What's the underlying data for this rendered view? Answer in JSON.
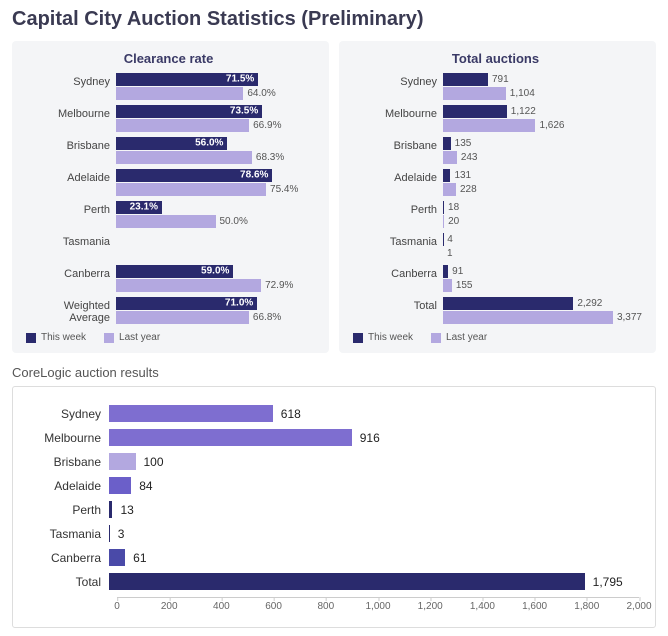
{
  "title": "Capital City Auction Statistics (Preliminary)",
  "colors": {
    "this_week": "#2a2a6d",
    "last_year": "#b3a8e0",
    "results_bar_light": "#7e6ed0",
    "results_bar_dark": "#2a2a6d",
    "card_bg": "#f4f5f7"
  },
  "clearance": {
    "title": "Clearance rate",
    "max": 100,
    "rows": [
      {
        "label": "Sydney",
        "this_week": 71.5,
        "last_year": 64.0
      },
      {
        "label": "Melbourne",
        "this_week": 73.5,
        "last_year": 66.9
      },
      {
        "label": "Brisbane",
        "this_week": 56.0,
        "last_year": 68.3
      },
      {
        "label": "Adelaide",
        "this_week": 78.6,
        "last_year": 75.4
      },
      {
        "label": "Perth",
        "this_week": 23.1,
        "last_year": 50.0
      },
      {
        "label": "Tasmania",
        "this_week": null,
        "last_year": null
      },
      {
        "label": "Canberra",
        "this_week": 59.0,
        "last_year": 72.9
      },
      {
        "label": "Weighted Average",
        "this_week": 71.0,
        "last_year": 66.8
      }
    ],
    "legend_this": "This week",
    "legend_last": "Last year",
    "value_suffix": "%"
  },
  "auctions": {
    "title": "Total auctions",
    "max": 3500,
    "rows": [
      {
        "label": "Sydney",
        "this_week": 791,
        "last_year": 1104,
        "last_fmt": "1,104"
      },
      {
        "label": "Melbourne",
        "this_week": 1122,
        "last_year": 1626,
        "this_fmt": "1,122",
        "last_fmt": "1,626"
      },
      {
        "label": "Brisbane",
        "this_week": 135,
        "last_year": 243
      },
      {
        "label": "Adelaide",
        "this_week": 131,
        "last_year": 228
      },
      {
        "label": "Perth",
        "this_week": 18,
        "last_year": 20
      },
      {
        "label": "Tasmania",
        "this_week": 4,
        "last_year": 1
      },
      {
        "label": "Canberra",
        "this_week": 91,
        "last_year": 155
      },
      {
        "label": "Total",
        "this_week": 2292,
        "last_year": 3377,
        "this_fmt": "2,292",
        "last_fmt": "3,377"
      }
    ],
    "legend_this": "This week",
    "legend_last": "Last year"
  },
  "results": {
    "title": "CoreLogic auction results",
    "max": 2000,
    "ticks": [
      0,
      200,
      400,
      600,
      800,
      1000,
      1200,
      1400,
      1600,
      1800,
      2000
    ],
    "tick_labels": [
      "0",
      "200",
      "400",
      "600",
      "800",
      "1,000",
      "1,200",
      "1,400",
      "1,600",
      "1,800",
      "2,000"
    ],
    "rows": [
      {
        "label": "Sydney",
        "value": 618,
        "color": "#7e6ed0"
      },
      {
        "label": "Melbourne",
        "value": 916,
        "color": "#7e6ed0",
        "fmt": "916"
      },
      {
        "label": "Brisbane",
        "value": 100,
        "color": "#b3a8e0"
      },
      {
        "label": "Adelaide",
        "value": 84,
        "color": "#6b5fc9"
      },
      {
        "label": "Perth",
        "value": 13,
        "color": "#2a2a6d"
      },
      {
        "label": "Tasmania",
        "value": 3,
        "color": "#2a2a6d"
      },
      {
        "label": "Canberra",
        "value": 61,
        "color": "#4a4aa8"
      },
      {
        "label": "Total",
        "value": 1795,
        "color": "#2a2a6d",
        "fmt": "1,795"
      }
    ]
  }
}
